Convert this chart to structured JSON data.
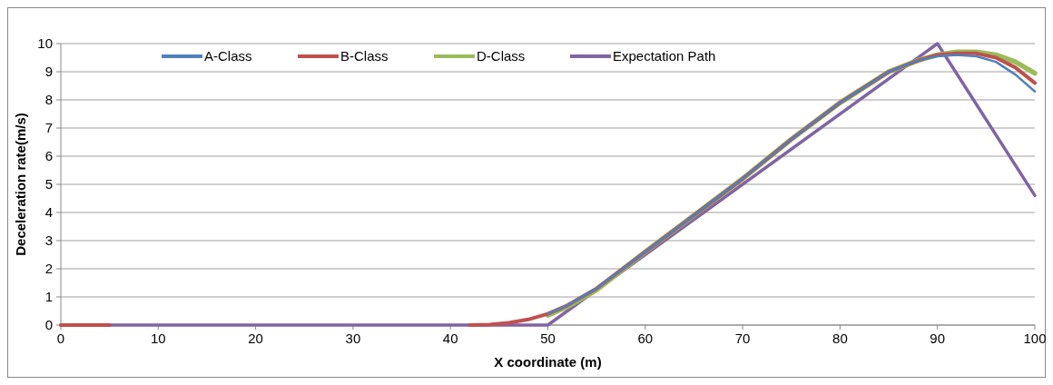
{
  "chart_data": {
    "type": "line",
    "xlabel": "X coordinate (m)",
    "ylabel": "Deceleration rate(m/s)",
    "xlim": [
      0,
      100
    ],
    "xticks": [
      0,
      10,
      20,
      30,
      40,
      50,
      60,
      70,
      80,
      90,
      100
    ],
    "ylim": [
      0,
      10
    ],
    "yticks": [
      0,
      1,
      2,
      3,
      4,
      5,
      6,
      7,
      8,
      9,
      10
    ],
    "grid": "y",
    "legend": "top",
    "marker": "none",
    "line_style": "solid",
    "series": [
      {
        "name": "A-Class",
        "color": "#4f81bd",
        "x": [
          50,
          52,
          55,
          60,
          65,
          70,
          75,
          80,
          85,
          88,
          90,
          92,
          94,
          96,
          98,
          100
        ],
        "values": [
          0.4,
          0.7,
          1.3,
          2.6,
          3.9,
          5.2,
          6.6,
          7.9,
          9.0,
          9.4,
          9.55,
          9.6,
          9.55,
          9.35,
          8.9,
          8.3
        ]
      },
      {
        "name": "B-Class",
        "color": "#c0504d",
        "x": [
          0,
          5,
          20,
          42,
          44,
          46,
          48,
          50,
          52,
          55,
          60,
          65,
          70,
          75,
          80,
          85,
          88,
          90,
          92,
          94,
          96,
          98,
          100
        ],
        "values": [
          0,
          0,
          null,
          0,
          0.02,
          0.08,
          0.2,
          0.4,
          0.7,
          1.3,
          2.6,
          3.9,
          5.2,
          6.6,
          7.9,
          9.0,
          9.4,
          9.6,
          9.65,
          9.65,
          9.5,
          9.15,
          8.6
        ]
      },
      {
        "name": "D-Class",
        "color": "#9bbb59",
        "x": [
          50,
          52,
          55,
          60,
          65,
          70,
          75,
          80,
          85,
          88,
          90,
          92,
          94,
          96,
          98,
          100
        ],
        "values": [
          0.35,
          0.65,
          1.25,
          2.6,
          3.9,
          5.2,
          6.6,
          7.9,
          9.0,
          9.4,
          9.6,
          9.7,
          9.7,
          9.6,
          9.35,
          8.95
        ]
      },
      {
        "name": "Expectation Path",
        "color": "#8064a2",
        "x": [
          0,
          50,
          90,
          100
        ],
        "values": [
          0,
          0,
          10,
          4.6
        ]
      }
    ]
  }
}
